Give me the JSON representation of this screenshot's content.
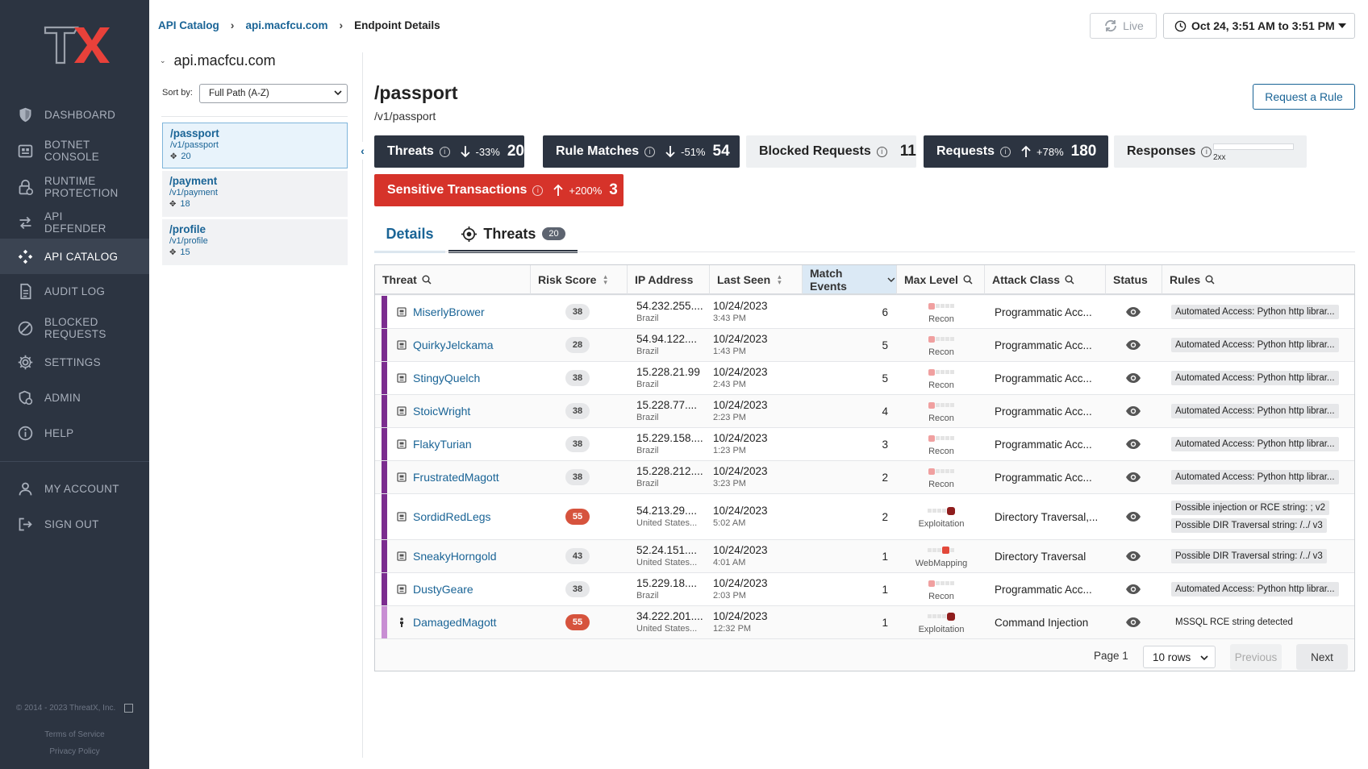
{
  "sidebar": {
    "logo_text": "TX",
    "items": [
      {
        "label": "DASHBOARD",
        "icon": "shield-icon"
      },
      {
        "label": "BOTNET\nCONSOLE",
        "icon": "botnet-icon"
      },
      {
        "label": "RUNTIME\nPROTECTION",
        "icon": "lock-icon"
      },
      {
        "label": "API\nDEFENDER",
        "icon": "api-arrows-icon"
      },
      {
        "label": "API CATALOG",
        "icon": "catalog-icon"
      },
      {
        "label": "AUDIT LOG",
        "icon": "document-icon"
      },
      {
        "label": "BLOCKED\nREQUESTS",
        "icon": "blocked-icon"
      },
      {
        "label": "SETTINGS",
        "icon": "gear-icon"
      },
      {
        "label": "ADMIN",
        "icon": "admin-icon"
      },
      {
        "label": "HELP",
        "icon": "info-icon"
      },
      {
        "label": "MY ACCOUNT",
        "icon": "user-icon"
      },
      {
        "label": "SIGN OUT",
        "icon": "sign-out-icon"
      }
    ],
    "copyright": "© 2014 - 2023 ThreatX, Inc.",
    "terms": "Terms of Service",
    "privacy": "Privacy Policy"
  },
  "breadcrumb": {
    "root": "API Catalog",
    "host": "api.macfcu.com",
    "current": "Endpoint Details"
  },
  "topbar": {
    "live_label": "Live",
    "date_range": "Oct 24, 3:51 AM to 3:51 PM"
  },
  "endpoint_list": {
    "host": "api.macfcu.com",
    "sort_label": "Sort by:",
    "sort_value": "Full Path (A-Z)",
    "items": [
      {
        "name": "/passport",
        "path": "/v1/passport",
        "count": "20"
      },
      {
        "name": "/payment",
        "path": "/v1/payment",
        "count": "18"
      },
      {
        "name": "/profile",
        "path": "/v1/profile",
        "count": "15"
      }
    ]
  },
  "endpoint": {
    "title": "/passport",
    "subtitle": "/v1/passport",
    "request_rule": "Request a Rule"
  },
  "metrics": {
    "threats": {
      "label": "Threats",
      "pct": "-33%",
      "value": "20"
    },
    "rule_matches": {
      "label": "Rule Matches",
      "pct": "-51%",
      "value": "54"
    },
    "blocked_requests": {
      "label": "Blocked Requests",
      "value": "11"
    },
    "requests": {
      "label": "Requests",
      "pct": "+78%",
      "value": "180"
    },
    "responses": {
      "label": "Responses",
      "bar_label": "2xx"
    },
    "sensitive": {
      "label": "Sensitive Transactions",
      "pct": "+200%",
      "value": "3"
    }
  },
  "tabs": {
    "details": "Details",
    "threats": "Threats",
    "threats_count": "20"
  },
  "table": {
    "headers": {
      "threat": "Threat",
      "risk_score": "Risk Score",
      "ip_address": "IP Address",
      "last_seen": "Last Seen",
      "match_events": "Match Events",
      "max_level": "Max Level",
      "attack_class": "Attack Class",
      "status": "Status",
      "rules": "Rules"
    },
    "rows": [
      {
        "name": "MiserlyBrower",
        "score": "38",
        "ip": "54.232.255....",
        "country": "Brazil",
        "date": "10/24/2023",
        "time": "3:43 PM",
        "events": "6",
        "level": "Recon",
        "level_num": 1,
        "attack": "Programmatic Acc...",
        "rules": [
          "Automated Access: Python http librar..."
        ]
      },
      {
        "name": "QuirkyJelckama",
        "score": "28",
        "ip": "54.94.122....",
        "country": "Brazil",
        "date": "10/24/2023",
        "time": "1:43 PM",
        "events": "5",
        "level": "Recon",
        "level_num": 1,
        "attack": "Programmatic Acc...",
        "rules": [
          "Automated Access: Python http librar..."
        ]
      },
      {
        "name": "StingyQuelch",
        "score": "38",
        "ip": "15.228.21.99",
        "country": "Brazil",
        "date": "10/24/2023",
        "time": "2:43 PM",
        "events": "5",
        "level": "Recon",
        "level_num": 1,
        "attack": "Programmatic Acc...",
        "rules": [
          "Automated Access: Python http librar..."
        ]
      },
      {
        "name": "StoicWright",
        "score": "38",
        "ip": "15.228.77....",
        "country": "Brazil",
        "date": "10/24/2023",
        "time": "2:23 PM",
        "events": "4",
        "level": "Recon",
        "level_num": 1,
        "attack": "Programmatic Acc...",
        "rules": [
          "Automated Access: Python http librar..."
        ]
      },
      {
        "name": "FlakyTurian",
        "score": "38",
        "ip": "15.229.158....",
        "country": "Brazil",
        "date": "10/24/2023",
        "time": "1:23 PM",
        "events": "3",
        "level": "Recon",
        "level_num": 1,
        "attack": "Programmatic Acc...",
        "rules": [
          "Automated Access: Python http librar..."
        ]
      },
      {
        "name": "FrustratedMagott",
        "score": "38",
        "ip": "15.228.212....",
        "country": "Brazil",
        "date": "10/24/2023",
        "time": "3:23 PM",
        "events": "2",
        "level": "Recon",
        "level_num": 1,
        "attack": "Programmatic Acc...",
        "rules": [
          "Automated Access: Python http librar..."
        ]
      },
      {
        "name": "SordidRedLegs",
        "score": "55",
        "ip": "54.213.29....",
        "country": "United States...",
        "date": "10/24/2023",
        "time": "5:02 AM",
        "events": "2",
        "level": "Exploitation",
        "level_num": 5,
        "attack": "Directory Traversal,...",
        "rules": [
          "Possible injection or RCE string: ; v2",
          "Possible DIR Traversal string: /../ v3"
        ]
      },
      {
        "name": "SneakyHorngold",
        "score": "43",
        "ip": "52.24.151....",
        "country": "United States...",
        "date": "10/24/2023",
        "time": "4:01 AM",
        "events": "1",
        "level": "WebMapping",
        "level_num": 4,
        "attack": "Directory Traversal",
        "rules": [
          "Possible DIR Traversal string: /../ v3"
        ]
      },
      {
        "name": "DustyGeare",
        "score": "38",
        "ip": "15.229.18....",
        "country": "Brazil",
        "date": "10/24/2023",
        "time": "2:03 PM",
        "events": "1",
        "level": "Recon",
        "level_num": 1,
        "attack": "Programmatic Acc...",
        "rules": [
          "Automated Access: Python http librar..."
        ]
      },
      {
        "name": "DamagedMagott",
        "score": "55",
        "ip": "34.222.201....",
        "country": "United States...",
        "date": "10/24/2023",
        "time": "12:32 PM",
        "events": "1",
        "level": "Exploitation",
        "level_num": 5,
        "attack": "Command Injection",
        "rules": [
          "MSSQL RCE string detected"
        ]
      }
    ]
  },
  "pager": {
    "page_label": "Page 1",
    "rows_value": "10 rows",
    "previous": "Previous",
    "next": "Next"
  },
  "colors": {
    "sidebar_bg": "#2c3441",
    "accent": "#1a6496",
    "danger": "#d6332a",
    "threat_bar": "#7b2c8f"
  }
}
